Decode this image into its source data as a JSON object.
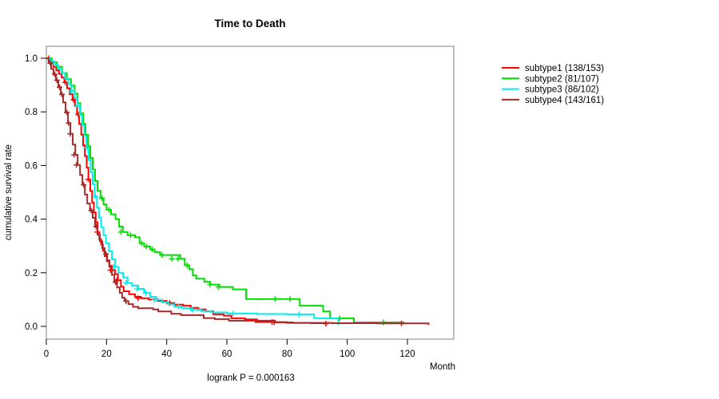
{
  "title": "Time to Death",
  "footnote": "logrank P = 0.000163",
  "axis_labels": {
    "x": "Month",
    "y": "cumulative survival rate"
  },
  "chart_data": {
    "type": "line",
    "subtype": "kaplan-meier-step-survival",
    "title": "Time to Death",
    "xlabel": "Month",
    "ylabel": "cumulative survival rate",
    "annotation": "logrank P = 0.000163",
    "xlim": [
      0,
      135.4
    ],
    "ylim": [
      0.0,
      1.0
    ],
    "x_ticks": [
      0,
      20,
      40,
      60,
      80,
      100,
      120
    ],
    "y_ticks": [
      0.0,
      0.2,
      0.4,
      0.6,
      0.8,
      1.0
    ],
    "y_tick_labels": [
      "0.0",
      "0.2",
      "0.4",
      "0.6",
      "0.8",
      "1.0"
    ],
    "grid": false,
    "legend_position": "right-outside",
    "frame_color": "#808080",
    "series": [
      {
        "name": "subtype1 (138/153)",
        "color": "#ff0000",
        "points": [
          [
            0,
            1.0
          ],
          [
            0.7,
            0.993
          ],
          [
            1.5,
            0.98
          ],
          [
            2.4,
            0.968
          ],
          [
            3.3,
            0.955
          ],
          [
            4.2,
            0.942
          ],
          [
            5.1,
            0.928
          ],
          [
            6,
            0.91
          ],
          [
            6.9,
            0.888
          ],
          [
            7.8,
            0.866
          ],
          [
            8.7,
            0.845
          ],
          [
            9.5,
            0.822
          ],
          [
            10.2,
            0.79
          ],
          [
            10.9,
            0.755
          ],
          [
            11.6,
            0.715
          ],
          [
            12.2,
            0.675
          ],
          [
            12.8,
            0.635
          ],
          [
            13.4,
            0.592
          ],
          [
            14,
            0.548
          ],
          [
            14.6,
            0.505
          ],
          [
            15.2,
            0.462
          ],
          [
            15.8,
            0.425
          ],
          [
            16.4,
            0.388
          ],
          [
            17,
            0.352
          ],
          [
            17.6,
            0.325
          ],
          [
            18.2,
            0.305
          ],
          [
            18.8,
            0.282
          ],
          [
            19.4,
            0.262
          ],
          [
            20.1,
            0.243
          ],
          [
            20.9,
            0.226
          ],
          [
            21.8,
            0.21
          ],
          [
            22.8,
            0.195
          ],
          [
            23.8,
            0.172
          ],
          [
            24.8,
            0.148
          ],
          [
            25.7,
            0.131
          ],
          [
            27.5,
            0.12
          ],
          [
            29.5,
            0.11
          ],
          [
            31.5,
            0.105
          ],
          [
            34,
            0.1
          ],
          [
            37,
            0.095
          ],
          [
            40,
            0.087
          ],
          [
            42.5,
            0.081
          ],
          [
            45.5,
            0.077
          ],
          [
            48,
            0.069
          ],
          [
            50.5,
            0.063
          ],
          [
            53,
            0.056
          ],
          [
            55.5,
            0.045
          ],
          [
            59,
            0.04
          ],
          [
            61.5,
            0.03
          ],
          [
            66,
            0.026
          ],
          [
            70,
            0.021
          ],
          [
            76,
            0.015
          ],
          [
            82,
            0.013
          ],
          [
            88,
            0.012
          ],
          [
            93,
            0.01
          ]
        ],
        "censors": [
          [
            0.8,
            1.0
          ],
          [
            6.3,
            0.91
          ],
          [
            9,
            0.845
          ],
          [
            10.6,
            0.79
          ],
          [
            13.9,
            0.548
          ],
          [
            16.9,
            0.352
          ],
          [
            21.3,
            0.21
          ],
          [
            23.4,
            0.172
          ],
          [
            30.5,
            0.105
          ],
          [
            41,
            0.087
          ],
          [
            75.7,
            0.015
          ],
          [
            92.9,
            0.01
          ]
        ]
      },
      {
        "name": "subtype2 (81/107)",
        "color": "#00dd00",
        "points": [
          [
            0,
            1.0
          ],
          [
            1.8,
            0.985
          ],
          [
            3.5,
            0.968
          ],
          [
            5.2,
            0.945
          ],
          [
            6.8,
            0.922
          ],
          [
            8.2,
            0.898
          ],
          [
            9.4,
            0.868
          ],
          [
            10.4,
            0.832
          ],
          [
            11.3,
            0.795
          ],
          [
            12.2,
            0.755
          ],
          [
            13,
            0.715
          ],
          [
            13.8,
            0.672
          ],
          [
            14.6,
            0.628
          ],
          [
            15.4,
            0.585
          ],
          [
            16.2,
            0.542
          ],
          [
            17,
            0.505
          ],
          [
            18,
            0.478
          ],
          [
            19,
            0.455
          ],
          [
            20,
            0.435
          ],
          [
            21.5,
            0.418
          ],
          [
            23,
            0.4
          ],
          [
            24.2,
            0.372
          ],
          [
            25.4,
            0.352
          ],
          [
            27,
            0.34
          ],
          [
            29.5,
            0.332
          ],
          [
            31,
            0.31
          ],
          [
            32.5,
            0.298
          ],
          [
            34.5,
            0.287
          ],
          [
            36,
            0.277
          ],
          [
            37.8,
            0.266
          ],
          [
            44.5,
            0.252
          ],
          [
            46,
            0.228
          ],
          [
            47.5,
            0.213
          ],
          [
            48.7,
            0.19
          ],
          [
            49.8,
            0.178
          ],
          [
            52.5,
            0.166
          ],
          [
            54.5,
            0.156
          ],
          [
            57.5,
            0.147
          ],
          [
            62,
            0.138
          ],
          [
            66.4,
            0.102
          ],
          [
            84.2,
            0.077
          ],
          [
            92,
            0.056
          ],
          [
            94.3,
            0.03
          ],
          [
            102.2,
            0.015
          ],
          [
            118.7,
            0.007
          ]
        ],
        "censors": [
          [
            13.9,
            0.672
          ],
          [
            18.5,
            0.478
          ],
          [
            20.8,
            0.435
          ],
          [
            24.8,
            0.352
          ],
          [
            28,
            0.34
          ],
          [
            31.7,
            0.31
          ],
          [
            33.3,
            0.298
          ],
          [
            35.2,
            0.287
          ],
          [
            38.5,
            0.266
          ],
          [
            41.7,
            0.252
          ],
          [
            43.8,
            0.252
          ],
          [
            46.8,
            0.228
          ],
          [
            54.4,
            0.156
          ],
          [
            57.2,
            0.147
          ],
          [
            76,
            0.102
          ],
          [
            81,
            0.102
          ],
          [
            97.5,
            0.03
          ],
          [
            112,
            0.015
          ]
        ]
      },
      {
        "name": "subtype3 (86/102)",
        "color": "#00eeee",
        "points": [
          [
            0,
            1.0
          ],
          [
            1.2,
            0.99
          ],
          [
            2.5,
            0.976
          ],
          [
            3.8,
            0.96
          ],
          [
            5,
            0.945
          ],
          [
            6.2,
            0.925
          ],
          [
            7.3,
            0.903
          ],
          [
            8.4,
            0.878
          ],
          [
            9.4,
            0.852
          ],
          [
            10.3,
            0.822
          ],
          [
            11.1,
            0.788
          ],
          [
            11.9,
            0.75
          ],
          [
            12.6,
            0.71
          ],
          [
            13.3,
            0.665
          ],
          [
            14,
            0.62
          ],
          [
            14.7,
            0.575
          ],
          [
            15.4,
            0.53
          ],
          [
            16.1,
            0.485
          ],
          [
            16.8,
            0.443
          ],
          [
            17.5,
            0.405
          ],
          [
            18.2,
            0.37
          ],
          [
            19,
            0.34
          ],
          [
            19.8,
            0.31
          ],
          [
            20.8,
            0.28
          ],
          [
            21.8,
            0.25
          ],
          [
            22.8,
            0.222
          ],
          [
            24,
            0.2
          ],
          [
            25.5,
            0.182
          ],
          [
            27,
            0.162
          ],
          [
            28.5,
            0.152
          ],
          [
            30.5,
            0.14
          ],
          [
            32.5,
            0.125
          ],
          [
            34.5,
            0.11
          ],
          [
            36.5,
            0.099
          ],
          [
            38.5,
            0.09
          ],
          [
            40.5,
            0.082
          ],
          [
            42.5,
            0.074
          ],
          [
            45,
            0.068
          ],
          [
            48,
            0.062
          ],
          [
            51.5,
            0.057
          ],
          [
            55,
            0.052
          ],
          [
            60,
            0.048
          ],
          [
            70,
            0.046
          ],
          [
            80,
            0.045
          ],
          [
            89,
            0.03
          ],
          [
            97,
            0.005
          ]
        ],
        "censors": [
          [
            8.2,
            0.878
          ],
          [
            10.5,
            0.822
          ],
          [
            13.2,
            0.665
          ],
          [
            16.3,
            0.485
          ],
          [
            22.5,
            0.222
          ],
          [
            26.5,
            0.162
          ],
          [
            30.2,
            0.14
          ],
          [
            33,
            0.125
          ],
          [
            36,
            0.099
          ],
          [
            44,
            0.074
          ],
          [
            48.5,
            0.062
          ],
          [
            62,
            0.048
          ],
          [
            84,
            0.045
          ]
        ]
      },
      {
        "name": "subtype4 (143/161)",
        "color": "#a52a2a",
        "points": [
          [
            0,
            1.0
          ],
          [
            0.8,
            0.982
          ],
          [
            1.6,
            0.96
          ],
          [
            2.4,
            0.94
          ],
          [
            3.2,
            0.918
          ],
          [
            4,
            0.892
          ],
          [
            4.8,
            0.865
          ],
          [
            5.6,
            0.835
          ],
          [
            6.4,
            0.798
          ],
          [
            7.2,
            0.758
          ],
          [
            8,
            0.718
          ],
          [
            8.8,
            0.678
          ],
          [
            9.6,
            0.64
          ],
          [
            10.4,
            0.602
          ],
          [
            11.2,
            0.565
          ],
          [
            12,
            0.528
          ],
          [
            12.8,
            0.492
          ],
          [
            13.6,
            0.458
          ],
          [
            14.5,
            0.432
          ],
          [
            15.4,
            0.405
          ],
          [
            16.2,
            0.372
          ],
          [
            17,
            0.342
          ],
          [
            17.8,
            0.318
          ],
          [
            18.6,
            0.292
          ],
          [
            19.4,
            0.27
          ],
          [
            20.2,
            0.246
          ],
          [
            21,
            0.222
          ],
          [
            21.8,
            0.192
          ],
          [
            22.6,
            0.165
          ],
          [
            23.5,
            0.145
          ],
          [
            24.4,
            0.125
          ],
          [
            25.2,
            0.107
          ],
          [
            26,
            0.094
          ],
          [
            27.3,
            0.083
          ],
          [
            28.8,
            0.073
          ],
          [
            30.5,
            0.068
          ],
          [
            35.5,
            0.063
          ],
          [
            37.2,
            0.056
          ],
          [
            41.5,
            0.047
          ],
          [
            44.8,
            0.042
          ],
          [
            52.3,
            0.031
          ],
          [
            56,
            0.027
          ],
          [
            60.7,
            0.021
          ],
          [
            69.5,
            0.016
          ],
          [
            80,
            0.013
          ],
          [
            95,
            0.012
          ],
          [
            110,
            0.011
          ],
          [
            127,
            0.005
          ]
        ],
        "censors": [
          [
            1.3,
            0.982
          ],
          [
            2.8,
            0.94
          ],
          [
            3.5,
            0.918
          ],
          [
            4.4,
            0.892
          ],
          [
            5.2,
            0.865
          ],
          [
            6.8,
            0.798
          ],
          [
            7.4,
            0.758
          ],
          [
            7.9,
            0.718
          ],
          [
            9.2,
            0.64
          ],
          [
            10,
            0.602
          ],
          [
            12.4,
            0.528
          ],
          [
            14.9,
            0.432
          ],
          [
            16.5,
            0.372
          ],
          [
            19.8,
            0.27
          ],
          [
            23,
            0.165
          ],
          [
            26.5,
            0.094
          ],
          [
            75,
            0.016
          ],
          [
            118,
            0.011
          ]
        ]
      }
    ]
  }
}
